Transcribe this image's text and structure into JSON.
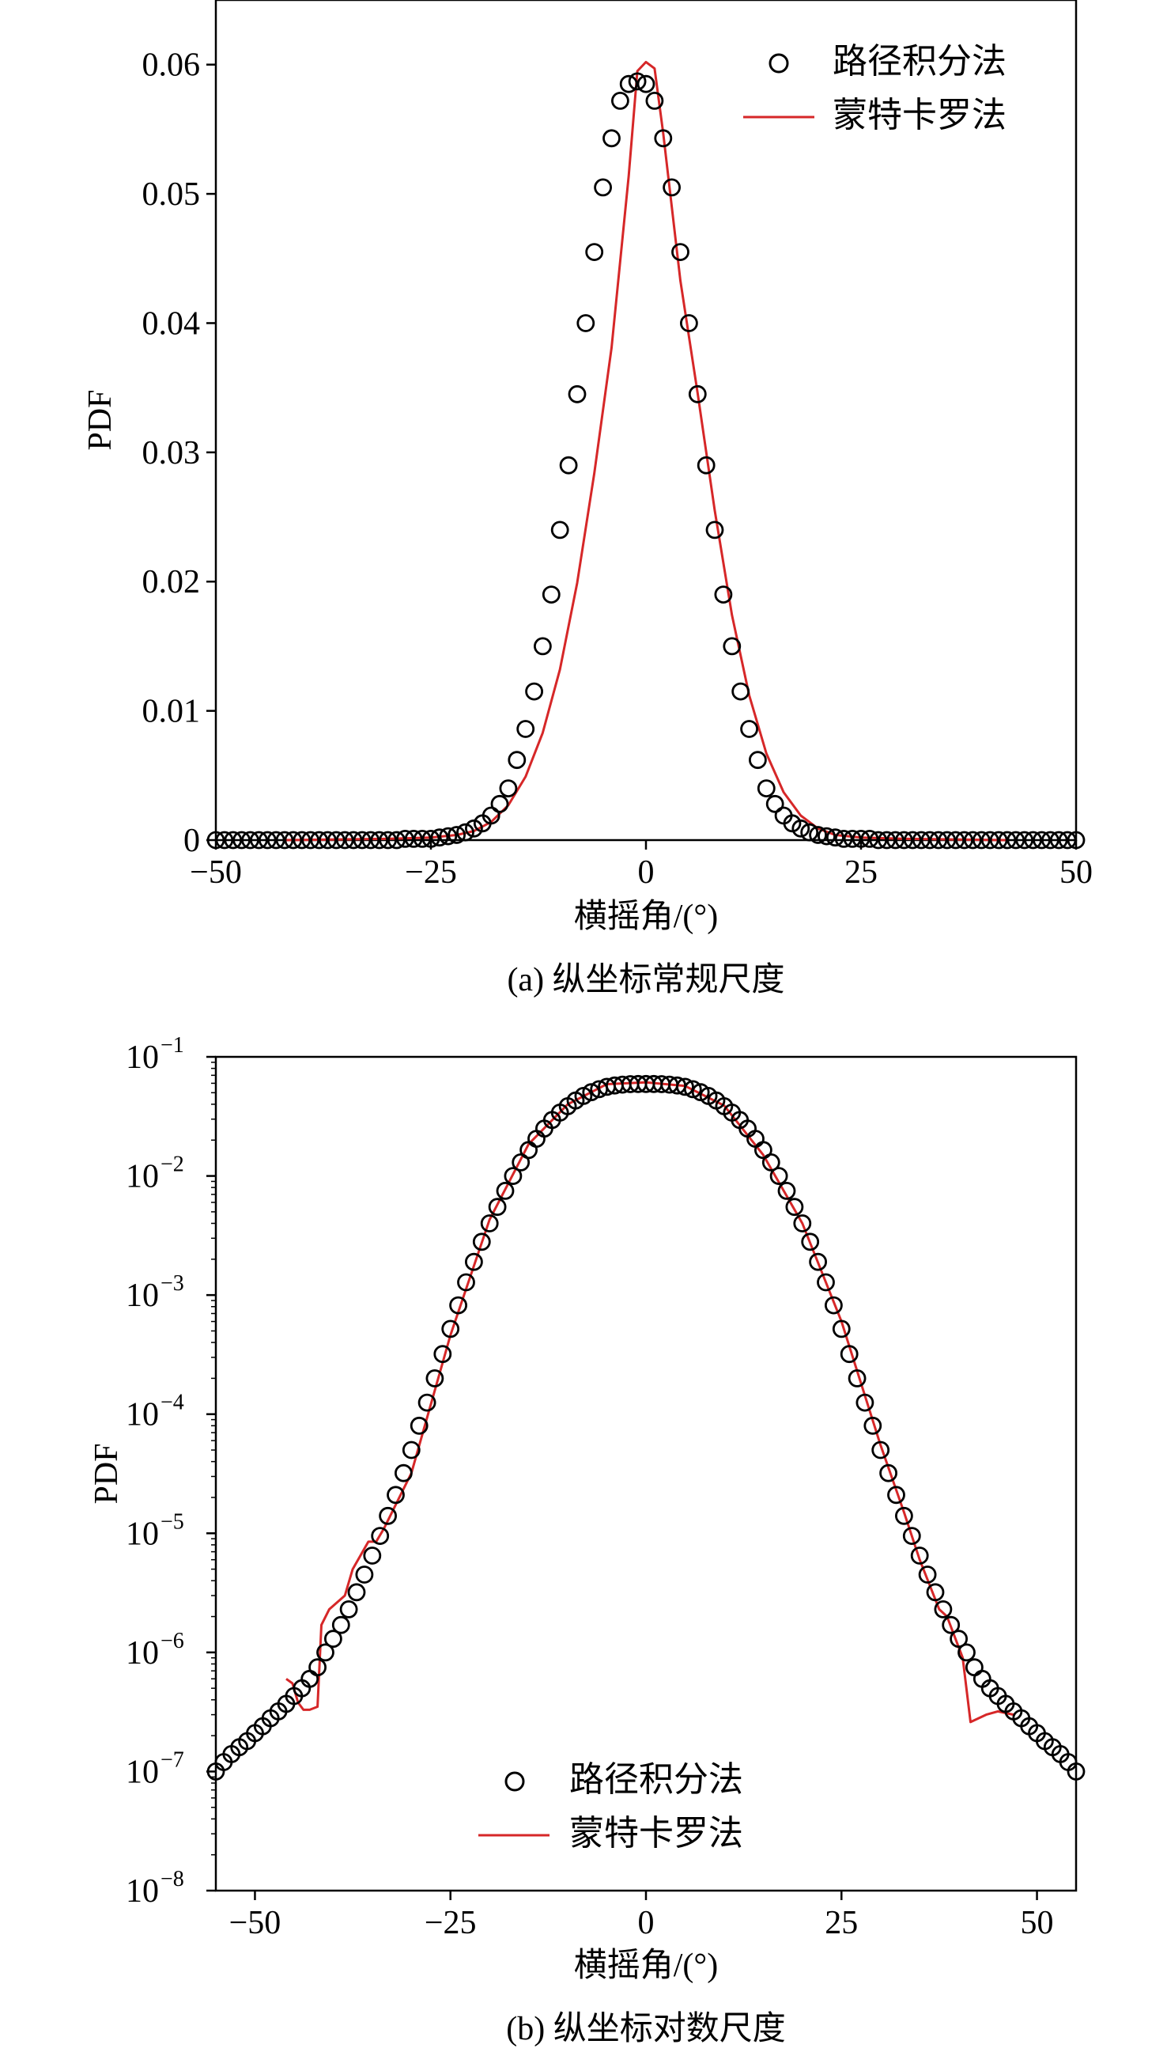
{
  "chart_data": [
    {
      "type": "line",
      "caption": "(a) 纵坐标常规尺度",
      "xlabel": "横摇角/(°)",
      "ylabel": "PDF",
      "xlim": [
        -50,
        50
      ],
      "ylim": [
        0,
        0.065
      ],
      "yscale": "linear",
      "xticks": [
        -50,
        -25,
        0,
        25,
        50
      ],
      "xtick_labels": [
        "−50",
        "−25",
        "0",
        "25",
        "50"
      ],
      "yticks": [
        0,
        0.01,
        0.02,
        0.03,
        0.04,
        0.05,
        0.06
      ],
      "ytick_labels": [
        "0",
        "0.01",
        "0.02",
        "0.03",
        "0.04",
        "0.05",
        "0.06"
      ],
      "legend_position": "top-right",
      "series": [
        {
          "name": "路径积分法",
          "style": "marker",
          "color": "#000000",
          "x": [
            -50,
            -49,
            -48,
            -47,
            -46,
            -45,
            -44,
            -43,
            -42,
            -41,
            -40,
            -39,
            -38,
            -37,
            -36,
            -35,
            -34,
            -33,
            -32,
            -31,
            -30,
            -29,
            -28,
            -27,
            -26,
            -25,
            -24,
            -23,
            -22,
            -21,
            -20,
            -19,
            -18,
            -17,
            -16,
            -15,
            -14,
            -13,
            -12,
            -11,
            -10,
            -9,
            -8,
            -7,
            -6,
            -5,
            -4,
            -3,
            -2,
            -1,
            0,
            1,
            2,
            3,
            4,
            5,
            6,
            7,
            8,
            9,
            10,
            11,
            12,
            13,
            14,
            15,
            16,
            17,
            18,
            19,
            20,
            21,
            22,
            23,
            24,
            25,
            26,
            27,
            28,
            29,
            30,
            31,
            32,
            33,
            34,
            35,
            36,
            37,
            38,
            39,
            40,
            41,
            42,
            43,
            44,
            45,
            46,
            47,
            48,
            49,
            50
          ],
          "y": [
            0,
            0,
            0,
            0,
            0,
            0,
            0,
            0,
            0,
            0,
            0,
            0,
            0,
            0,
            0,
            0,
            0,
            0,
            0,
            0,
            0,
            0,
            0.0001,
            0.0001,
            0.0001,
            0.0001,
            0.0002,
            0.0003,
            0.0004,
            0.0006,
            0.0009,
            0.0013,
            0.0019,
            0.0028,
            0.004,
            0.0062,
            0.0086,
            0.0115,
            0.015,
            0.019,
            0.024,
            0.029,
            0.0345,
            0.04,
            0.0455,
            0.0505,
            0.0543,
            0.0572,
            0.0585,
            0.0587,
            0.0585,
            0.0572,
            0.0543,
            0.0505,
            0.0455,
            0.04,
            0.0345,
            0.029,
            0.024,
            0.019,
            0.015,
            0.0115,
            0.0086,
            0.0062,
            0.004,
            0.0028,
            0.0019,
            0.0013,
            0.0009,
            0.0006,
            0.0004,
            0.0003,
            0.0002,
            0.0001,
            0.0001,
            0.0001,
            0.0001,
            0,
            0,
            0,
            0,
            0,
            0,
            0,
            0,
            0,
            0,
            0,
            0,
            0,
            0,
            0,
            0,
            0,
            0,
            0,
            0,
            0,
            0,
            0,
            0
          ]
        },
        {
          "name": "蒙特卡罗法",
          "style": "line",
          "color": "#d62728",
          "x": [
            -42,
            -30,
            -25,
            -22,
            -20,
            -18,
            -16,
            -14,
            -12,
            -10,
            -8,
            -6,
            -4,
            -2,
            -1,
            0,
            1,
            2,
            4,
            6,
            8,
            10,
            12,
            14,
            16,
            18,
            20,
            22,
            25,
            30,
            42
          ],
          "y": [
            0,
            0.0001,
            0.0002,
            0.0004,
            0.0007,
            0.0014,
            0.0027,
            0.0049,
            0.0083,
            0.0132,
            0.0199,
            0.0284,
            0.0381,
            0.0514,
            0.0595,
            0.0602,
            0.0597,
            0.0547,
            0.0433,
            0.0346,
            0.0255,
            0.0174,
            0.0112,
            0.0067,
            0.0037,
            0.0019,
            0.0009,
            0.0004,
            0.0002,
            0.0001,
            0
          ]
        }
      ]
    },
    {
      "type": "line",
      "caption": "(b) 纵坐标对数尺度",
      "xlabel": "横摇角/(°)",
      "ylabel": "PDF",
      "xlim": [
        -55,
        55
      ],
      "ylim": [
        1e-08,
        0.1
      ],
      "yscale": "log",
      "xticks": [
        -50,
        -25,
        0,
        25,
        50
      ],
      "xtick_labels": [
        "−50",
        "−25",
        "0",
        "25",
        "50"
      ],
      "yticks": [
        1e-08,
        1e-07,
        1e-06,
        1e-05,
        0.0001,
        0.001,
        0.01,
        0.1
      ],
      "ytick_labels": [
        {
          "base": "10",
          "exp": "−8"
        },
        {
          "base": "10",
          "exp": "−7"
        },
        {
          "base": "10",
          "exp": "−6"
        },
        {
          "base": "10",
          "exp": "−5"
        },
        {
          "base": "10",
          "exp": "−4"
        },
        {
          "base": "10",
          "exp": "−3"
        },
        {
          "base": "10",
          "exp": "−2"
        },
        {
          "base": "10",
          "exp": "−1"
        }
      ],
      "legend_position": "bottom-center",
      "series": [
        {
          "name": "路径积分法",
          "style": "marker",
          "color": "#000000",
          "x": [
            -55,
            -54,
            -53,
            -52,
            -51,
            -50,
            -49,
            -48,
            -47,
            -46,
            -45,
            -44,
            -43,
            -42,
            -41,
            -40,
            -39,
            -38,
            -37,
            -36,
            -35,
            -34,
            -33,
            -32,
            -31,
            -30,
            -29,
            -28,
            -27,
            -26,
            -25,
            -24,
            -23,
            -22,
            -21,
            -20,
            -19,
            -18,
            -17,
            -16,
            -15,
            -14,
            -13,
            -12,
            -11,
            -10,
            -9,
            -8,
            -7,
            -6,
            -5,
            -4,
            -3,
            -2,
            -1,
            0,
            1,
            2,
            3,
            4,
            5,
            6,
            7,
            8,
            9,
            10,
            11,
            12,
            13,
            14,
            15,
            16,
            17,
            18,
            19,
            20,
            21,
            22,
            23,
            24,
            25,
            26,
            27,
            28,
            29,
            30,
            31,
            32,
            33,
            34,
            35,
            36,
            37,
            38,
            39,
            40,
            41,
            42,
            43,
            44,
            45,
            46,
            47,
            48,
            49,
            50,
            51,
            52,
            53,
            54,
            55
          ],
          "y": [
            1e-07,
            1.2e-07,
            1.4e-07,
            1.6e-07,
            1.8e-07,
            2.1e-07,
            2.4e-07,
            2.8e-07,
            3.2e-07,
            3.7e-07,
            4.3e-07,
            5e-07,
            6e-07,
            7.5e-07,
            1e-06,
            1.3e-06,
            1.7e-06,
            2.3e-06,
            3.2e-06,
            4.5e-06,
            6.5e-06,
            9.5e-06,
            1.4e-05,
            2.1e-05,
            3.2e-05,
            5e-05,
            8e-05,
            0.000125,
            0.0002,
            0.00032,
            0.00052,
            0.00082,
            0.00128,
            0.0019,
            0.0028,
            0.004,
            0.0055,
            0.0075,
            0.01,
            0.013,
            0.0165,
            0.0205,
            0.025,
            0.0295,
            0.034,
            0.0385,
            0.043,
            0.047,
            0.0505,
            0.0535,
            0.056,
            0.0575,
            0.0585,
            0.059,
            0.0592,
            0.0592,
            0.0592,
            0.059,
            0.0585,
            0.0575,
            0.056,
            0.0535,
            0.0505,
            0.047,
            0.043,
            0.0385,
            0.034,
            0.0295,
            0.025,
            0.0205,
            0.0165,
            0.013,
            0.01,
            0.0075,
            0.0055,
            0.004,
            0.0028,
            0.0019,
            0.00128,
            0.00082,
            0.00052,
            0.00032,
            0.0002,
            0.000125,
            8e-05,
            5e-05,
            3.2e-05,
            2.1e-05,
            1.4e-05,
            9.5e-06,
            6.5e-06,
            4.5e-06,
            3.2e-06,
            2.3e-06,
            1.7e-06,
            1.3e-06,
            1e-06,
            7.5e-07,
            6e-07,
            5e-07,
            4.3e-07,
            3.7e-07,
            3.2e-07,
            2.8e-07,
            2.4e-07,
            2.1e-07,
            1.8e-07,
            1.6e-07,
            1.4e-07,
            1.2e-07,
            1e-07
          ]
        },
        {
          "name": "蒙特卡罗法",
          "style": "line",
          "color": "#d62728",
          "x": [
            -46,
            -45.2,
            -44.5,
            -43.8,
            -43,
            -42,
            -41.5,
            -40.5,
            -38.5,
            -37.5,
            -35.5,
            -34.5,
            -33.5,
            -30,
            -25,
            -20,
            -15,
            -10,
            -5,
            0,
            5,
            10,
            15,
            20,
            25,
            30,
            33,
            35,
            37.5,
            38.5,
            40.5,
            41.5,
            43.5,
            45,
            47
          ],
          "y": [
            6e-07,
            5.5e-07,
            3.8e-07,
            3.3e-07,
            3.3e-07,
            3.5e-07,
            1.7e-06,
            2.3e-06,
            3e-06,
            5e-06,
            8.5e-06,
            8.5e-06,
            1.1e-05,
            3.2e-05,
            0.00046,
            0.0043,
            0.0185,
            0.04,
            0.059,
            0.061,
            0.057,
            0.039,
            0.015,
            0.004,
            0.0006,
            5.5e-05,
            1.5e-05,
            6e-06,
            2.3e-06,
            2e-06,
            9e-07,
            2.6e-07,
            3e-07,
            3.2e-07,
            3e-07
          ]
        }
      ]
    }
  ]
}
